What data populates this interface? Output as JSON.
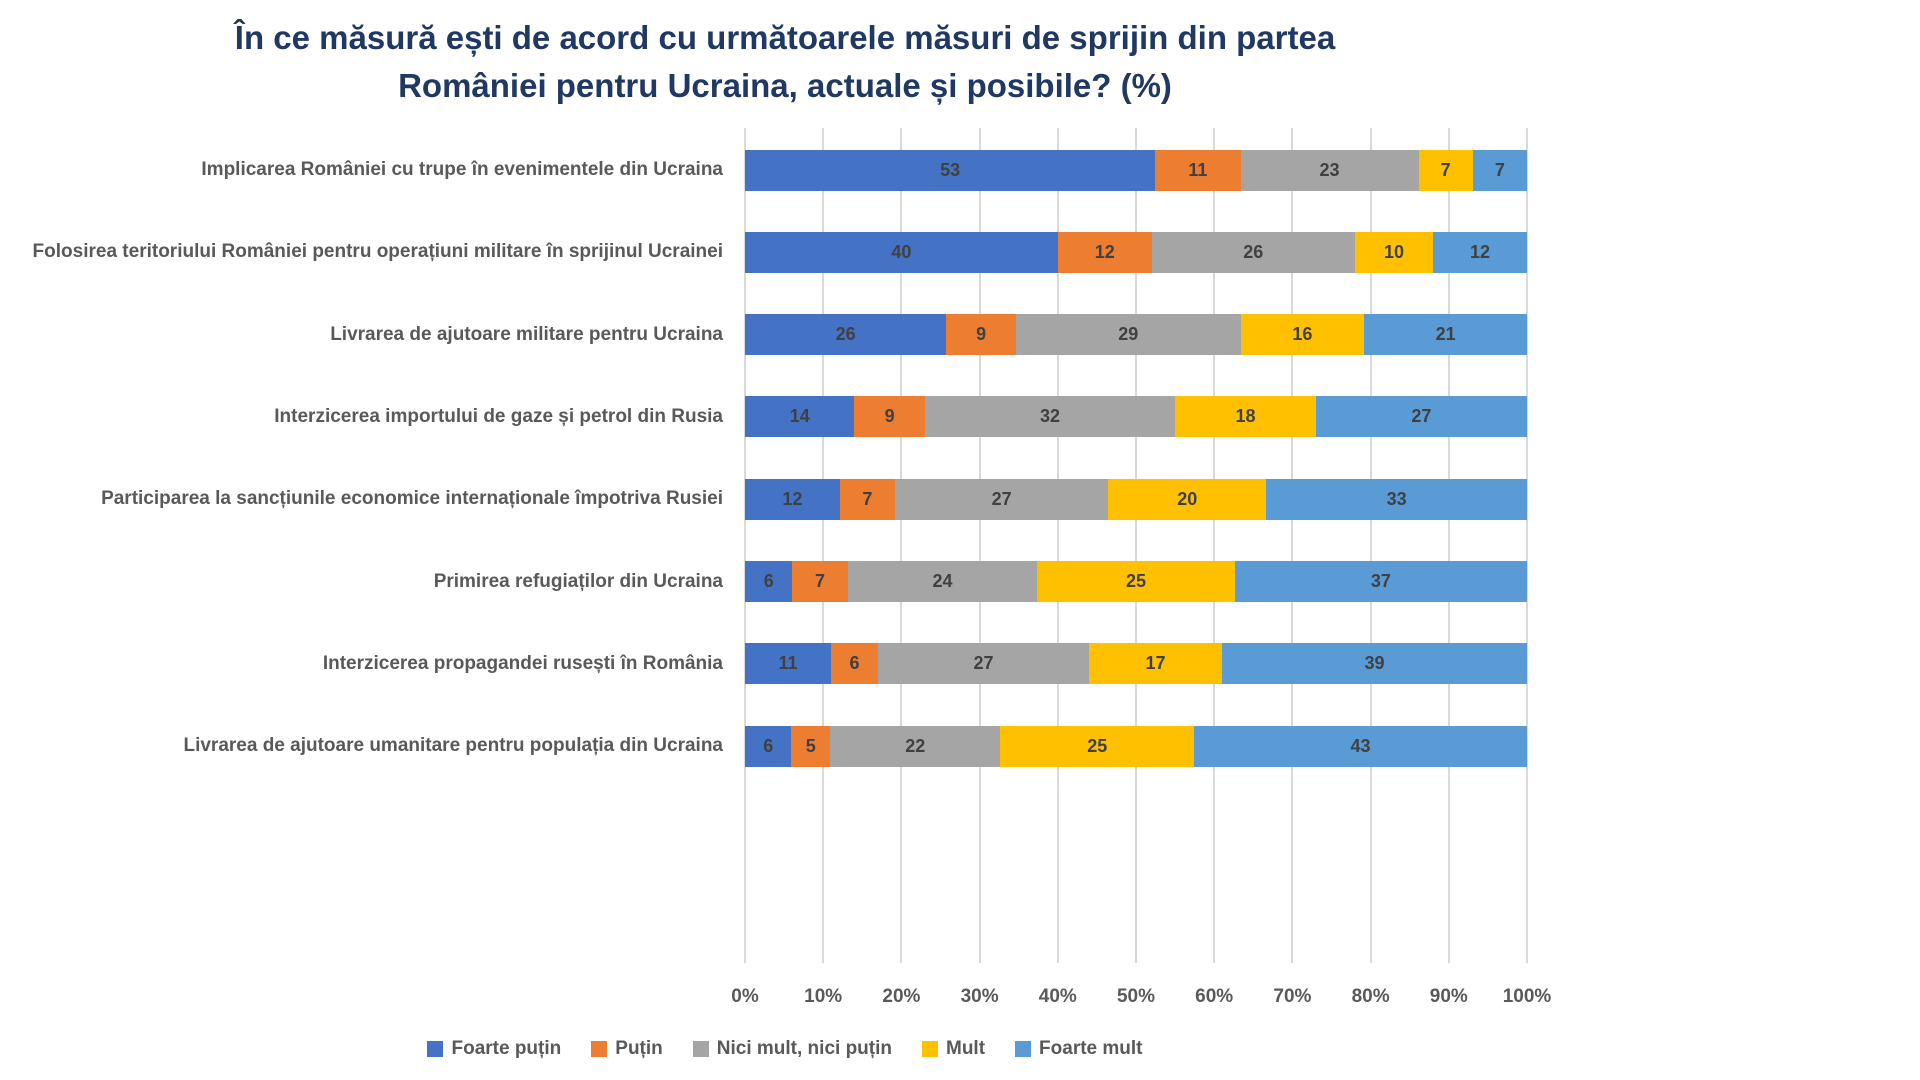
{
  "title_lines": [
    "În ce măsură ești de acord cu următoarele măsuri de sprijin din partea",
    "României pentru Ucraina, actuale și posibile? (%)"
  ],
  "colors": {
    "title": "#1F3864",
    "axis_text": "#595959",
    "value_text": "#404040",
    "gridline": "#D9D9D9"
  },
  "chart_data": {
    "type": "bar",
    "stacked": true,
    "percent_stacked": true,
    "orientation": "horizontal",
    "title": "În ce măsură ești de acord cu următoarele măsuri de sprijin din partea României pentru Ucraina, actuale și posibile? (%)",
    "categories": [
      "Implicarea României cu trupe în evenimentele din Ucraina",
      "Folosirea teritoriului României pentru operațiuni militare în sprijinul Ucrainei",
      "Livrarea de ajutoare militare pentru Ucraina",
      "Interzicerea importului de gaze și petrol din Rusia",
      "Participarea la sancțiunile economice internaționale împotriva Rusiei",
      "Primirea refugiaților din Ucraina",
      "Interzicerea propagandei rusești în România",
      "Livrarea de ajutoare umanitare pentru populația din Ucraina"
    ],
    "series": [
      {
        "name": "Foarte puțin",
        "color": "#4472C4",
        "values": [
          53,
          40,
          26,
          14,
          12,
          6,
          11,
          6
        ]
      },
      {
        "name": "Puțin",
        "color": "#ED7D31",
        "values": [
          11,
          12,
          9,
          9,
          7,
          7,
          6,
          5
        ]
      },
      {
        "name": "Nici mult, nici puțin",
        "color": "#A5A5A5",
        "values": [
          23,
          26,
          29,
          32,
          27,
          24,
          27,
          22
        ]
      },
      {
        "name": "Mult",
        "color": "#FFC000",
        "values": [
          7,
          10,
          16,
          18,
          20,
          25,
          17,
          25
        ]
      },
      {
        "name": "Foarte mult",
        "color": "#5B9BD5",
        "values": [
          7,
          12,
          21,
          27,
          33,
          37,
          39,
          43
        ]
      }
    ],
    "xlim": [
      0,
      100
    ],
    "x_tick_labels": [
      "0%",
      "10%",
      "20%",
      "30%",
      "40%",
      "50%",
      "60%",
      "70%",
      "80%",
      "90%",
      "100%"
    ],
    "grid": true,
    "legend_position": "bottom"
  }
}
